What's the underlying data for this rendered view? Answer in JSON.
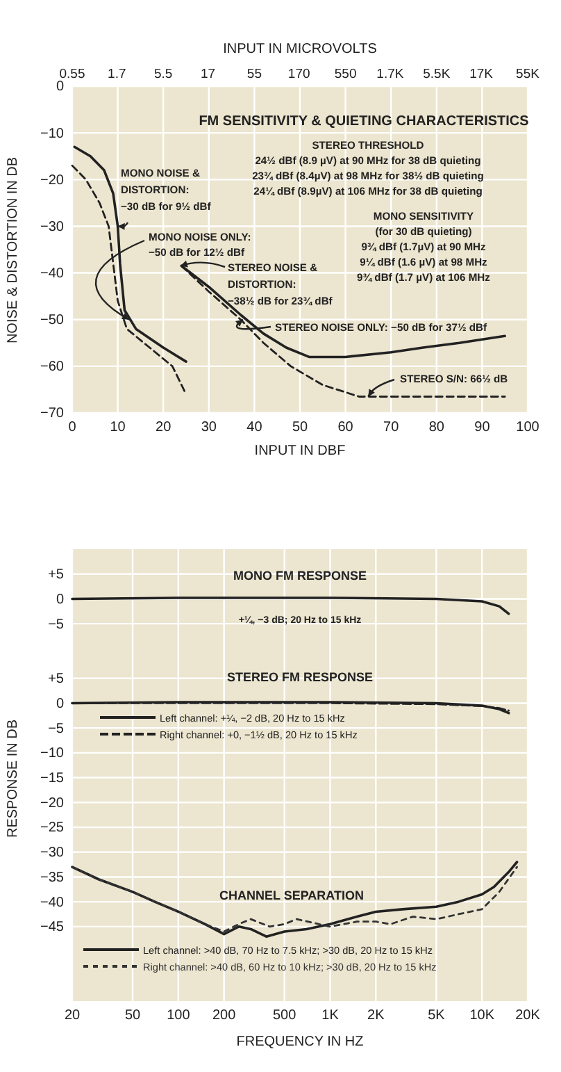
{
  "chart_data": [
    {
      "type": "line",
      "title": "FM SENSITIVITY & QUIETING CHARACTERISTICS",
      "xlabel": "INPUT IN DBF",
      "ylabel": "NOISE & DISTORTION IN DB",
      "x2label": "INPUT IN MICROVOLTS",
      "xlim": [
        0,
        100
      ],
      "xticks": [
        0,
        10,
        20,
        30,
        40,
        50,
        60,
        70,
        80,
        90,
        100
      ],
      "log": "x2",
      "x2lim": [
        0.55,
        55000
      ],
      "x2ticks": [
        0.55,
        1.7,
        5.5,
        17,
        55,
        170,
        550,
        {
          "value": 1700,
          "label": "1.7K"
        },
        {
          "value": 5500,
          "label": "5.5K"
        },
        {
          "value": 17000,
          "label": "17K"
        },
        {
          "value": 55000,
          "label": "55K"
        }
      ],
      "ylim": [
        -70,
        0
      ],
      "yticks": [
        0,
        -10,
        -20,
        -30,
        -40,
        -50,
        -60,
        -70
      ],
      "grid": true,
      "series": [
        {
          "color": "#222222",
          "line_style": "solid",
          "x": [
            0.5,
            4,
            7,
            9,
            10,
            10.5,
            11.5,
            14,
            20,
            25
          ],
          "values": [
            -13,
            -15,
            -18,
            -23,
            -30,
            -38,
            -48,
            -52,
            -56,
            -59
          ]
        },
        {
          "color": "#222222",
          "line_style": "dashed",
          "x": [
            0,
            3,
            6,
            8,
            9,
            10,
            12,
            17,
            22,
            25
          ],
          "values": [
            -17,
            -20,
            -25,
            -30,
            -38,
            -46,
            -52,
            -56,
            -60,
            -66
          ]
        },
        {
          "color": "#222222",
          "line_style": "solid",
          "x": [
            24,
            30,
            37,
            42,
            47,
            52,
            60,
            70,
            77,
            85,
            95
          ],
          "values": [
            -38.5,
            -43,
            -49,
            -53,
            -56,
            -58,
            -58,
            -57,
            -56,
            -55,
            -53.5
          ]
        },
        {
          "color": "#222222",
          "line_style": "dashed",
          "x": [
            24,
            30,
            37,
            42,
            48,
            55,
            63,
            70,
            95
          ],
          "values": [
            -38.5,
            -44,
            -50,
            -55,
            -60,
            -64,
            -66.5,
            -66.5,
            -66.5
          ]
        }
      ],
      "annotations": [
        "STEREO THRESHOLD\n24½ dBf (8.9 µV) at 90 MHz for 38 dB quieting\n23¾ dBf (8.4µV) at 98 MHz for 38½ dB quieting\n24¼ dBf (8.9µV) at 106 MHz for 38 dB quieting",
        {
          "text": "MONO NOISE &\nDISTORTION:\n−30 dB for 9½ dBf",
          "x": 10,
          "y": -30
        },
        {
          "text": "MONO NOISE ONLY:\n−50 dB for 12½ dBf",
          "x": 12.5,
          "y": -50
        },
        {
          "text": "STEREO NOISE &\nDISTORTION:\n−38½ dB for 23¾ dBf",
          "x": 23.75,
          "y": -38.5
        },
        "MONO SENSITIVITY\n(for 30 dB quieting)\n9¾ dBf (1.7µV) at 90 MHz\n9¼ dBf (1.6 µV) at 98 MHz\n9¾ dBf (1.7 µV) at 106 MHz",
        {
          "text": "STEREO NOISE ONLY: −50 dB for 37½ dBf",
          "x": 37.5,
          "y": -50
        },
        {
          "text": "STEREO S/N: 66½ dB",
          "x": 65,
          "y": -66.5
        }
      ]
    },
    {
      "type": "line",
      "title": "MONO FM RESPONSE",
      "log": "x",
      "xlim": [
        20,
        20000
      ],
      "xticks": [
        20,
        50,
        100,
        200,
        500,
        1000,
        2000,
        5000,
        10000,
        20000
      ],
      "ylim": [
        -11,
        10
      ],
      "yticks": [
        {
          "value": 5,
          "label": "+5"
        },
        0,
        -5
      ],
      "tick_labels": "y",
      "grid": true,
      "series": [
        {
          "color": "#222222",
          "line_style": "solid",
          "x": [
            20,
            100,
            1000,
            5000,
            10000,
            13000,
            15000
          ],
          "values": [
            0,
            0.2,
            0.2,
            0,
            -0.5,
            -1.5,
            -3
          ]
        }
      ],
      "annotations": [
        "+¼, −3 dB; 20 Hz to 15 kHz"
      ]
    },
    {
      "type": "line",
      "title": "STEREO FM RESPONSE",
      "xlabel": "FREQUENCY IN HZ",
      "ylabel": "RESPONSE IN DB",
      "log": "x",
      "xlim": [
        20,
        20000
      ],
      "xticks": [
        20,
        50,
        100,
        200,
        500,
        {
          "value": 1000,
          "label": "1K"
        },
        {
          "value": 2000,
          "label": "2K"
        },
        {
          "value": 5000,
          "label": "5K"
        },
        {
          "value": 10000,
          "label": "10K"
        },
        {
          "value": 20000,
          "label": "20K"
        }
      ],
      "ylim": [
        -60,
        10
      ],
      "yticks": [
        {
          "value": 5,
          "label": "+5"
        },
        0,
        -5,
        -10,
        -15,
        -20,
        -25,
        -30,
        -35,
        -40,
        -45
      ],
      "grid": true,
      "legend": "left",
      "series": [
        {
          "name": "Left channel: +¼, −2 dB, 20 Hz to 15 kHz",
          "color": "#222222",
          "line_style": "solid",
          "x": [
            20,
            100,
            1000,
            5000,
            10000,
            13000,
            15000
          ],
          "values": [
            0,
            0.2,
            0.2,
            0,
            -0.5,
            -1.2,
            -2
          ]
        },
        {
          "name": "Right channel: +0, −1½ dB, 20 Hz to 15 kHz",
          "color": "#222222",
          "line_style": "dashed",
          "x": [
            20,
            100,
            1000,
            5000,
            10000,
            13000,
            15000
          ],
          "values": [
            0,
            0,
            0,
            -0.2,
            -0.6,
            -1,
            -1.5
          ]
        },
        {
          "name": "Left channel: >40 dB, 70 Hz to 7.5 kHz; >30 dB, 20 Hz to 15 kHz",
          "color": "#222222",
          "line_style": "solid",
          "x": [
            20,
            30,
            50,
            70,
            100,
            150,
            200,
            250,
            300,
            380,
            500,
            700,
            1000,
            1500,
            2000,
            3000,
            5000,
            7000,
            10000,
            12000,
            15000,
            17000
          ],
          "values": [
            -33,
            -35.5,
            -38,
            -40,
            -42,
            -44.5,
            -46.5,
            -45,
            -45.5,
            -47,
            -46,
            -45.5,
            -44.5,
            -43,
            -42,
            -41.5,
            -41,
            -40,
            -38.5,
            -37,
            -34,
            -32
          ]
        },
        {
          "name": "Right channel: >40 dB, 60 Hz to 10 kHz; >30 dB, 20 Hz to 15 kHz",
          "color": "#333333",
          "line_style": "dashed",
          "x": [
            20,
            30,
            50,
            70,
            100,
            150,
            200,
            250,
            300,
            400,
            500,
            600,
            1000,
            1500,
            2000,
            2500,
            3500,
            5000,
            7000,
            10000,
            13000,
            17000
          ],
          "values": [
            -33,
            -35.5,
            -38,
            -40,
            -42,
            -44.5,
            -46,
            -44.5,
            -43.5,
            -45,
            -44.5,
            -43.5,
            -45,
            -44,
            -44,
            -44.5,
            -43,
            -43.5,
            -42.5,
            -41.5,
            -38,
            -33
          ]
        }
      ],
      "annotations": [
        "CHANNEL SEPARATION"
      ]
    }
  ]
}
